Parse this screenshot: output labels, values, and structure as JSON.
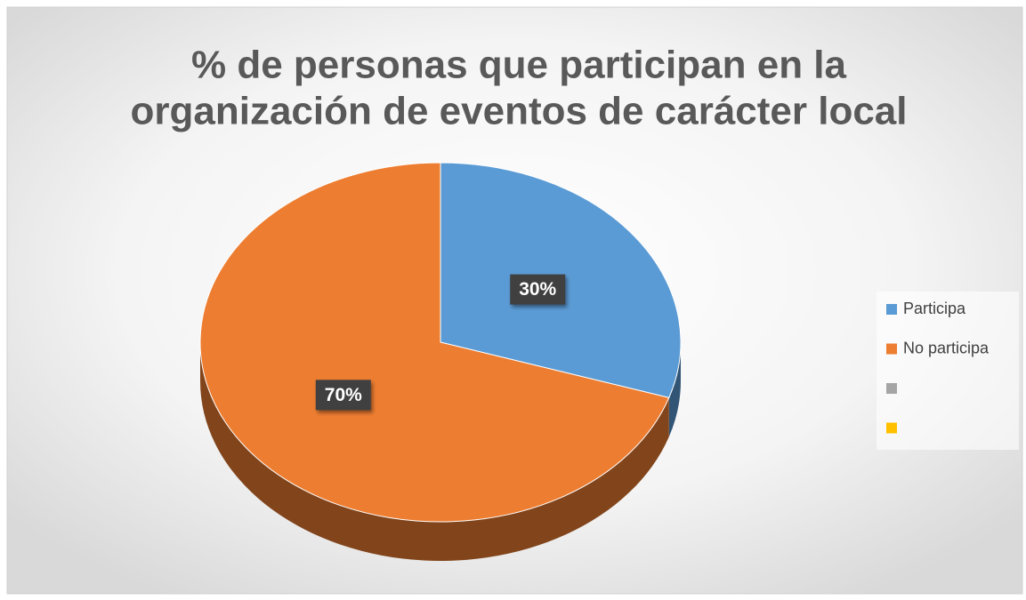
{
  "chart_data": {
    "type": "pie3d",
    "title": [
      "% de personas que participan en la",
      "organización de eventos de carácter local"
    ],
    "categories": [
      "Participa",
      "No participa",
      null,
      null
    ],
    "values": [
      30,
      70,
      null,
      null
    ],
    "value_labels": [
      "30%",
      "70%",
      null,
      null
    ],
    "colors": [
      "#5b9bd5",
      "#ed7d31",
      "#a5a5a5",
      "#ffc000"
    ],
    "legend": "right"
  }
}
